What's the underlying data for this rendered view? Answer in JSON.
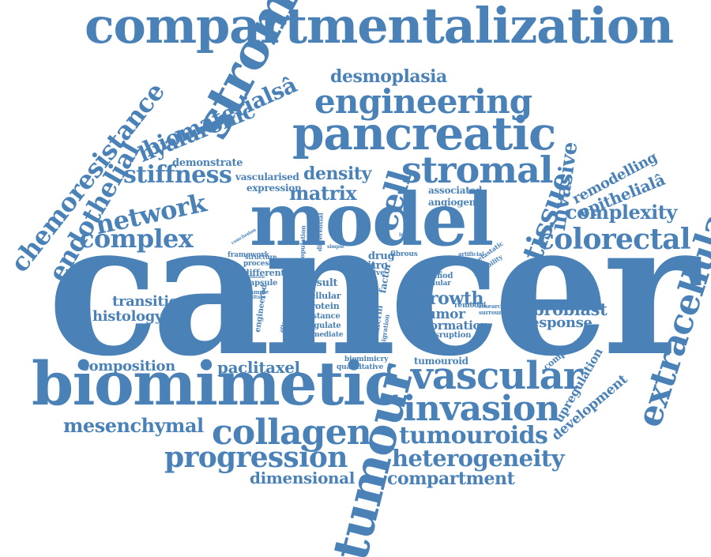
{
  "colors": {
    "word": "#4a82b8",
    "background": "#ffffff"
  },
  "words": [
    {
      "text": "compartmentalization"
    },
    {
      "text": "cancer"
    },
    {
      "text": "model"
    },
    {
      "text": "biomimetic"
    },
    {
      "text": "stroma"
    },
    {
      "text": "tumour"
    },
    {
      "text": "pancreatic"
    },
    {
      "text": "engineering"
    },
    {
      "text": "stromal"
    },
    {
      "text": "vascular"
    },
    {
      "text": "invasion"
    },
    {
      "text": "collagen"
    },
    {
      "text": "progression"
    },
    {
      "text": "heterogeneity"
    },
    {
      "text": "tumouroids"
    },
    {
      "text": "compartment"
    },
    {
      "text": "dimensional"
    },
    {
      "text": "mesenchymal"
    },
    {
      "text": "composition"
    },
    {
      "text": "paclitaxel"
    },
    {
      "text": "extracellular"
    },
    {
      "text": "colorectal"
    },
    {
      "text": "complexity"
    },
    {
      "text": "tissue"
    },
    {
      "text": "invasive"
    },
    {
      "text": "remodelling"
    },
    {
      "text": "epithelialâ"
    },
    {
      "text": "chemoresistance"
    },
    {
      "text": "endothelial"
    },
    {
      "text": "biomaterialsâ"
    },
    {
      "text": "hyaluronic"
    },
    {
      "text": "demonstrate"
    },
    {
      "text": "stiffness"
    },
    {
      "text": "network"
    },
    {
      "text": "complex"
    },
    {
      "text": "desmoplasia"
    },
    {
      "text": "cell"
    },
    {
      "text": "density"
    },
    {
      "text": "matrix"
    },
    {
      "text": "vascularised"
    },
    {
      "text": "expression"
    },
    {
      "text": "associated"
    },
    {
      "text": "angiogenic"
    },
    {
      "text": "transition"
    },
    {
      "text": "histology"
    },
    {
      "text": "growth"
    },
    {
      "text": "tumor"
    },
    {
      "text": "formation"
    },
    {
      "text": "disruption"
    },
    {
      "text": "fibroblast"
    },
    {
      "text": "response"
    },
    {
      "text": "component"
    },
    {
      "text": "upregulation"
    },
    {
      "text": "development"
    },
    {
      "text": "tumouroid"
    },
    {
      "text": "biomimicry"
    },
    {
      "text": "quantitative"
    },
    {
      "text": "result"
    },
    {
      "text": "cellular"
    },
    {
      "text": "protein"
    },
    {
      "text": "distance"
    },
    {
      "text": "regulate"
    },
    {
      "text": "mediate"
    },
    {
      "text": "different"
    },
    {
      "text": "capsule"
    },
    {
      "text": "processes"
    },
    {
      "text": "structure"
    },
    {
      "text": "framework"
    },
    {
      "text": "engineered"
    },
    {
      "text": "population"
    },
    {
      "text": "vitro"
    },
    {
      "text": "drug"
    },
    {
      "text": "mass"
    },
    {
      "text": "fibrous"
    },
    {
      "text": "factor"
    },
    {
      "text": "active"
    },
    {
      "text": "acellular"
    },
    {
      "text": "remodel"
    },
    {
      "text": "research"
    },
    {
      "text": "surround"
    },
    {
      "text": "method"
    },
    {
      "text": "metastatic"
    },
    {
      "text": "capability"
    },
    {
      "text": "surface"
    },
    {
      "text": "central"
    },
    {
      "text": "advance"
    },
    {
      "text": "cadherin"
    },
    {
      "text": "migration"
    },
    {
      "text": "differential"
    },
    {
      "text": "invade"
    },
    {
      "text": "artificial"
    },
    {
      "text": "simple"
    },
    {
      "text": "sample"
    },
    {
      "text": "culture"
    },
    {
      "text": "attachment"
    },
    {
      "text": "conclusion"
    },
    {
      "text": "fibrotic"
    }
  ]
}
